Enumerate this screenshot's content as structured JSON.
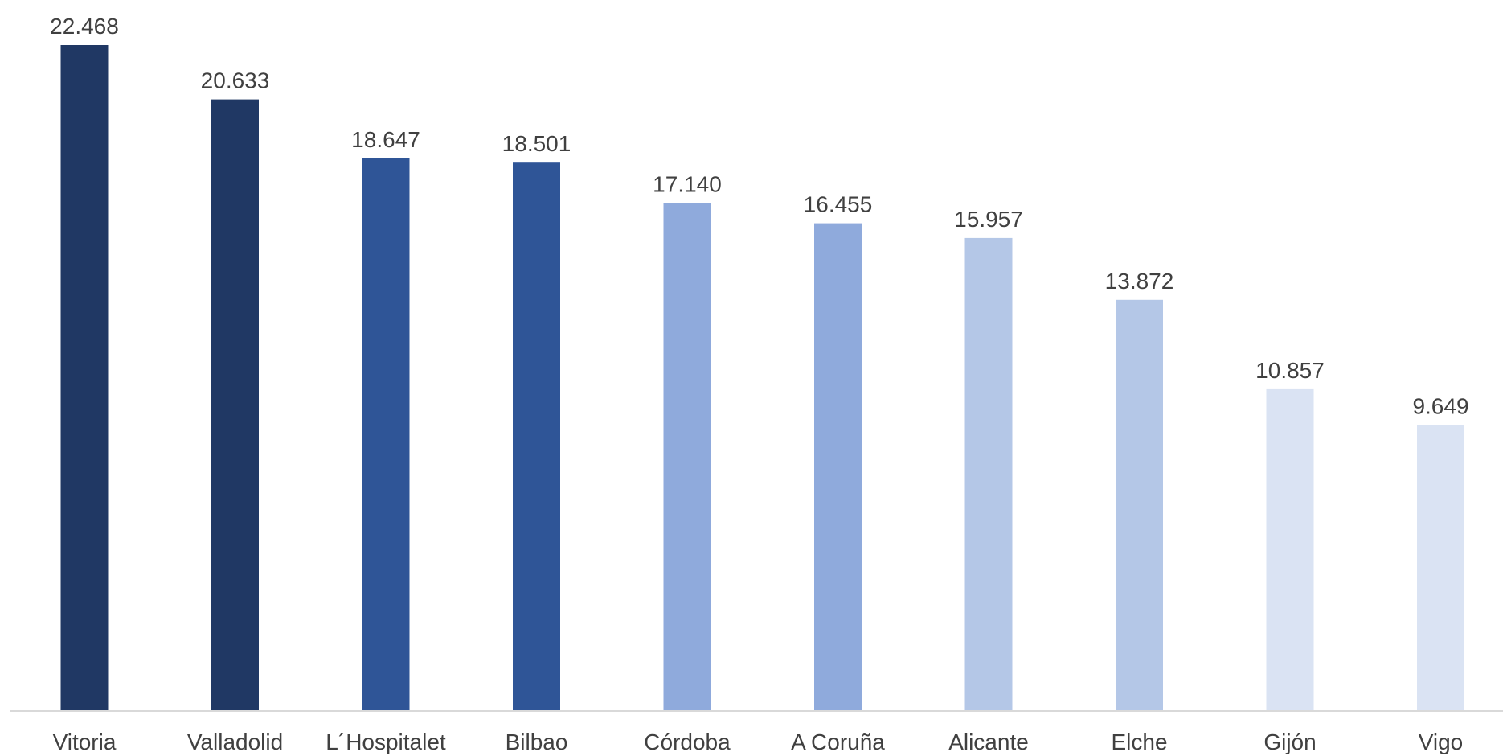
{
  "chart_data": {
    "type": "bar",
    "title": "",
    "xlabel": "",
    "ylabel": "",
    "ylim": [
      0,
      22468
    ],
    "grid": false,
    "legend": "none",
    "categories": [
      "Vitoria",
      "Valladolid",
      "L´Hospitalet",
      "Bilbao",
      "Córdoba",
      "A Coruña",
      "Alicante",
      "Elche",
      "Gijón",
      "Vigo"
    ],
    "values": [
      22468,
      20633,
      18647,
      18501,
      17140,
      16455,
      15957,
      13872,
      10857,
      9649
    ],
    "value_labels": [
      "22.468",
      "20.633",
      "18.647",
      "18.501",
      "17.140",
      "16.455",
      "15.957",
      "13.872",
      "10.857",
      "9.649"
    ],
    "bar_colors": [
      "#203864",
      "#203864",
      "#2F5597",
      "#2F5597",
      "#8FAADC",
      "#8FAADC",
      "#B4C7E7",
      "#B4C7E7",
      "#DAE3F3",
      "#DAE3F3"
    ],
    "axis_color": "#D9D9D9",
    "text_color": "#404040"
  }
}
